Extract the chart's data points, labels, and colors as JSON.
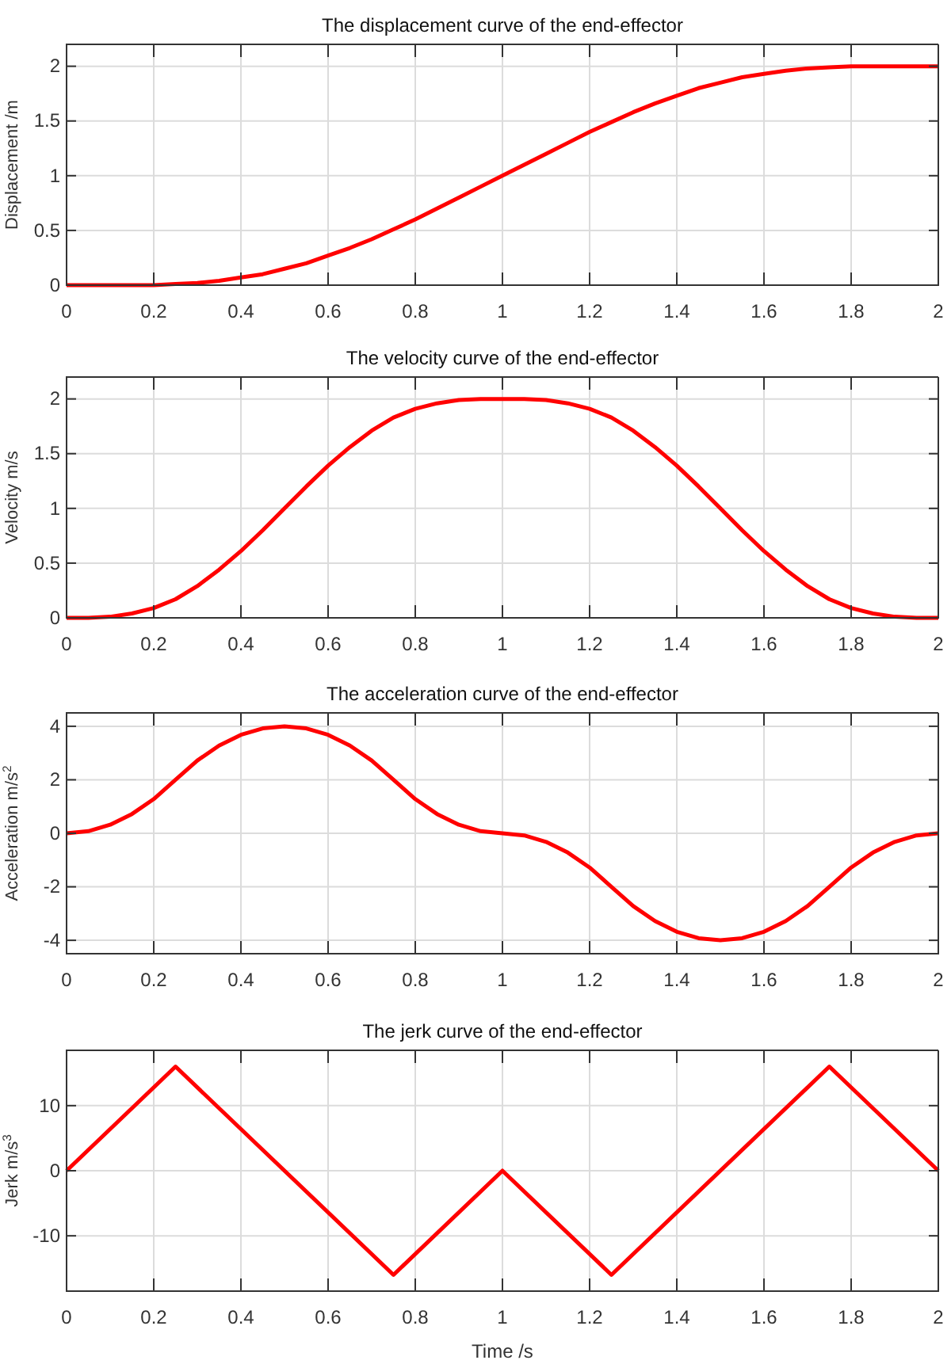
{
  "chart_data": [
    {
      "type": "line",
      "title": "The displacement curve of the end-effector",
      "ylabel": "Displacement /m",
      "grid": true,
      "x": [
        0,
        0.05,
        0.1,
        0.15,
        0.2,
        0.25,
        0.3,
        0.35,
        0.4,
        0.45,
        0.5,
        0.55,
        0.6,
        0.65,
        0.7,
        0.75,
        0.8,
        0.85,
        0.9,
        0.95,
        1,
        1.05,
        1.1,
        1.15,
        1.2,
        1.25,
        1.3,
        1.35,
        1.4,
        1.45,
        1.5,
        1.55,
        1.6,
        1.65,
        1.7,
        1.75,
        1.8,
        1.85,
        1.9,
        1.95,
        2
      ],
      "series": [
        {
          "color": "#ff0000",
          "values": [
            0,
            0,
            0,
            0,
            0,
            0.01,
            0.02,
            0.04,
            0.07,
            0.1,
            0.15,
            0.2,
            0.27,
            0.34,
            0.42,
            0.51,
            0.6,
            0.7,
            0.8,
            0.9,
            1,
            1.1,
            1.2,
            1.3,
            1.4,
            1.49,
            1.58,
            1.66,
            1.73,
            1.8,
            1.85,
            1.9,
            1.93,
            1.96,
            1.98,
            1.99,
            2,
            2,
            2,
            2,
            2
          ]
        }
      ],
      "xlim": [
        0,
        2
      ],
      "xticks": [
        0,
        0.2,
        0.4,
        0.6,
        0.8,
        1,
        1.2,
        1.4,
        1.6,
        1.8,
        2
      ],
      "ylim": [
        0,
        2.2
      ],
      "yticks": [
        0,
        0.5,
        1,
        1.5,
        2
      ]
    },
    {
      "type": "line",
      "title": "The velocity curve of the end-effector",
      "ylabel": "Velocity m/s",
      "grid": true,
      "x": [
        0,
        0.05,
        0.1,
        0.15,
        0.2,
        0.25,
        0.3,
        0.35,
        0.4,
        0.45,
        0.5,
        0.55,
        0.6,
        0.65,
        0.7,
        0.75,
        0.8,
        0.85,
        0.9,
        0.95,
        1,
        1.05,
        1.1,
        1.15,
        1.2,
        1.25,
        1.3,
        1.35,
        1.4,
        1.45,
        1.5,
        1.55,
        1.6,
        1.65,
        1.7,
        1.75,
        1.8,
        1.85,
        1.9,
        1.95,
        2
      ],
      "series": [
        {
          "color": "#ff0000",
          "values": [
            0,
            0,
            0.01,
            0.04,
            0.09,
            0.17,
            0.29,
            0.44,
            0.61,
            0.8,
            1,
            1.2,
            1.39,
            1.56,
            1.71,
            1.83,
            1.91,
            1.96,
            1.99,
            2,
            2,
            2,
            1.99,
            1.96,
            1.91,
            1.83,
            1.71,
            1.56,
            1.39,
            1.2,
            1,
            0.8,
            0.61,
            0.44,
            0.29,
            0.17,
            0.09,
            0.04,
            0.01,
            0,
            0
          ]
        }
      ],
      "xlim": [
        0,
        2
      ],
      "xticks": [
        0,
        0.2,
        0.4,
        0.6,
        0.8,
        1,
        1.2,
        1.4,
        1.6,
        1.8,
        2
      ],
      "ylim": [
        0,
        2.2
      ],
      "yticks": [
        0,
        0.5,
        1,
        1.5,
        2
      ]
    },
    {
      "type": "line",
      "title": "The acceleration curve of the end-effector",
      "ylabel": "Acceleration m/s$^{2}$",
      "grid": true,
      "x": [
        0,
        0.05,
        0.1,
        0.15,
        0.2,
        0.25,
        0.3,
        0.35,
        0.4,
        0.45,
        0.5,
        0.55,
        0.6,
        0.65,
        0.7,
        0.75,
        0.8,
        0.85,
        0.9,
        0.95,
        1,
        1.05,
        1.1,
        1.15,
        1.2,
        1.25,
        1.3,
        1.35,
        1.4,
        1.45,
        1.5,
        1.55,
        1.6,
        1.65,
        1.7,
        1.75,
        1.8,
        1.85,
        1.9,
        1.95,
        2
      ],
      "series": [
        {
          "color": "#ff0000",
          "values": [
            0,
            0.08,
            0.32,
            0.72,
            1.28,
            2,
            2.72,
            3.28,
            3.68,
            3.92,
            4,
            3.92,
            3.68,
            3.28,
            2.72,
            2,
            1.28,
            0.72,
            0.32,
            0.08,
            0,
            -0.08,
            -0.32,
            -0.72,
            -1.28,
            -2,
            -2.72,
            -3.28,
            -3.68,
            -3.92,
            -4,
            -3.92,
            -3.68,
            -3.28,
            -2.72,
            -2,
            -1.28,
            -0.72,
            -0.32,
            -0.08,
            0
          ]
        }
      ],
      "xlim": [
        0,
        2
      ],
      "xticks": [
        0,
        0.2,
        0.4,
        0.6,
        0.8,
        1,
        1.2,
        1.4,
        1.6,
        1.8,
        2
      ],
      "ylim": [
        -4.5,
        4.5
      ],
      "yticks": [
        -4,
        -2,
        0,
        2,
        4
      ]
    },
    {
      "type": "line",
      "title": "The jerk curve of the end-effector",
      "ylabel": "Jerk m/s$^{3}$",
      "xlabel": "Time /s",
      "grid": true,
      "x": [
        0,
        0.25,
        0.75,
        1,
        1.25,
        1.75,
        2
      ],
      "series": [
        {
          "color": "#ff0000",
          "values": [
            0,
            16,
            -16,
            0,
            -16,
            16,
            0
          ]
        }
      ],
      "xlim": [
        0,
        2
      ],
      "xticks": [
        0,
        0.2,
        0.4,
        0.6,
        0.8,
        1,
        1.2,
        1.4,
        1.6,
        1.8,
        2
      ],
      "ylim": [
        -18.5,
        18.5
      ],
      "yticks": [
        -10,
        0,
        10
      ]
    }
  ]
}
